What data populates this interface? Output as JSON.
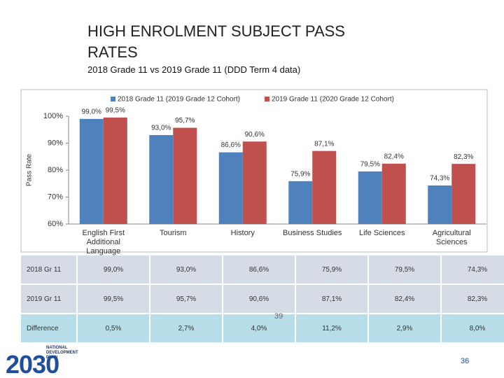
{
  "title": "HIGH ENROLMENT SUBJECT PASS RATES",
  "subtitle": "2018 Grade 11 vs 2019 Grade 11 (DDD Term 4 data)",
  "chart_data": {
    "type": "bar",
    "categories": [
      "English First Additional Language",
      "Tourism",
      "History",
      "Business Studies",
      "Life Sciences",
      "Agricultural Sciences"
    ],
    "series": [
      {
        "name": "2018 Grade 11 (2019 Grade 12 Cohort)",
        "color": "#4f81bd",
        "values": [
          99.0,
          93.0,
          86.6,
          75.9,
          79.5,
          74.3
        ],
        "value_labels": [
          "99,0%",
          "93,0%",
          "86,6%",
          "75,9%",
          "79,5%",
          "74,3%"
        ]
      },
      {
        "name": "2019 Grade 11 (2020 Grade 12 Cohort)",
        "color": "#c0504d",
        "values": [
          99.5,
          95.7,
          90.6,
          87.1,
          82.4,
          82.3
        ],
        "value_labels": [
          "99,5%",
          "95,7%",
          "90,6%",
          "87,1%",
          "82,4%",
          "82,3%"
        ]
      }
    ],
    "y_label": "Pass Rate",
    "ylim": [
      60,
      100
    ],
    "yticks": [
      {
        "value": 60,
        "label": "60%"
      },
      {
        "value": 70,
        "label": "70%"
      },
      {
        "value": 80,
        "label": "80%"
      },
      {
        "value": 90,
        "label": "90%"
      },
      {
        "value": 100,
        "label": "100%"
      }
    ],
    "grid": false,
    "legend": "top"
  },
  "table": {
    "rows": [
      [
        "2018 Gr 11",
        "99,0%",
        "93,0%",
        "86,6%",
        "75,9%",
        "79,5%",
        "74,3%"
      ],
      [
        "2019 Gr 11",
        "99,5%",
        "95,7%",
        "90,6%",
        "87,1%",
        "82,4%",
        "82,3%"
      ],
      [
        "Difference",
        "0,5%",
        "2,7%",
        "4,0%",
        "11,2%",
        "2,9%",
        "8,0%"
      ]
    ]
  },
  "stray_mark": "39",
  "logo": {
    "text": "NATIONAL DEVELOPMENT PLAN",
    "year": "2030"
  },
  "page_number": "36"
}
